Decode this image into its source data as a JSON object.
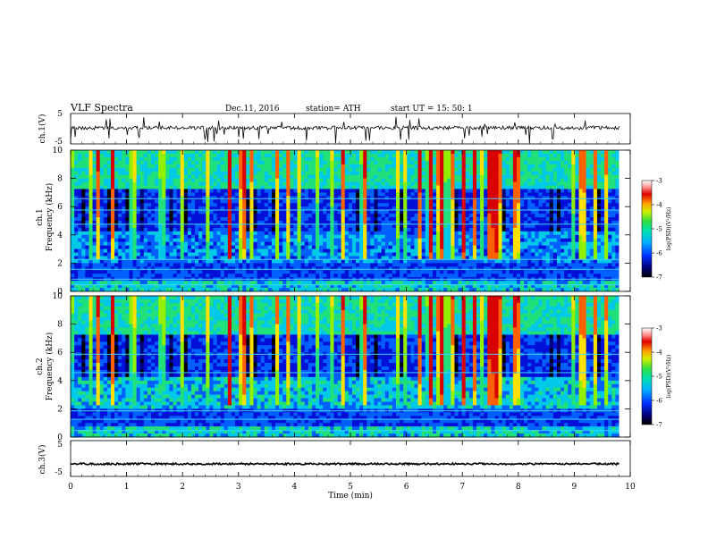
{
  "header": {
    "title": "VLF  Spectra",
    "date": "Dec.11, 2016",
    "station": "station= ATH",
    "start": "start  UT  =    15: 50: 1"
  },
  "chart_data": {
    "type": "heatmap",
    "xlabel": "Time  (min)",
    "xlim": [
      0,
      10
    ],
    "xticks": [
      "0",
      "1",
      "2",
      "3",
      "4",
      "5",
      "6",
      "7",
      "8",
      "9",
      "10"
    ],
    "record_end_min": 9.8,
    "panels": [
      {
        "id": "ch1-voltage",
        "type": "line",
        "ylabel": "ch.1(V)",
        "ylim": [
          -5,
          5
        ],
        "yticks": [
          "5",
          "-5"
        ],
        "baseline_v": 0.3,
        "noise_v": 0.6
      },
      {
        "id": "ch1-spectrogram",
        "type": "heatmap",
        "ylabel_channel": "ch.1",
        "ylabel": "Frequency  (kHz)",
        "ylim": [
          0,
          10
        ],
        "yticks": [
          "0",
          "2",
          "4",
          "6",
          "8",
          "10"
        ],
        "colorbar": {
          "label": "log(PSD)(V²/Hz)",
          "range": [
            -7,
            -3
          ],
          "ticks": [
            "-3",
            "-4",
            "-5",
            "-6",
            "-7"
          ]
        }
      },
      {
        "id": "ch2-spectrogram",
        "type": "heatmap",
        "ylabel_channel": "ch.2",
        "ylabel": "Frequency  (kHz)",
        "ylim": [
          0,
          10
        ],
        "yticks": [
          "0",
          "2",
          "4",
          "6",
          "8",
          "10"
        ],
        "colorbar": {
          "label": "log(PSD)(V²/Hz)",
          "range": [
            -7,
            -3
          ],
          "ticks": [
            "-3",
            "-4",
            "-5",
            "-6",
            "-7"
          ]
        }
      },
      {
        "id": "ch3-voltage",
        "type": "line",
        "ylabel": "ch.3(V)",
        "ylim": [
          -5,
          5
        ],
        "yticks": [
          "5",
          "-5"
        ],
        "baseline_v": -1.5,
        "noise_v": 0.25
      }
    ],
    "colormap": [
      "#000000",
      "#00007a",
      "#0010d8",
      "#0060ff",
      "#00c8e8",
      "#20e07a",
      "#90f000",
      "#ffe000",
      "#ff6000",
      "#d80000",
      "#ffffff"
    ]
  }
}
